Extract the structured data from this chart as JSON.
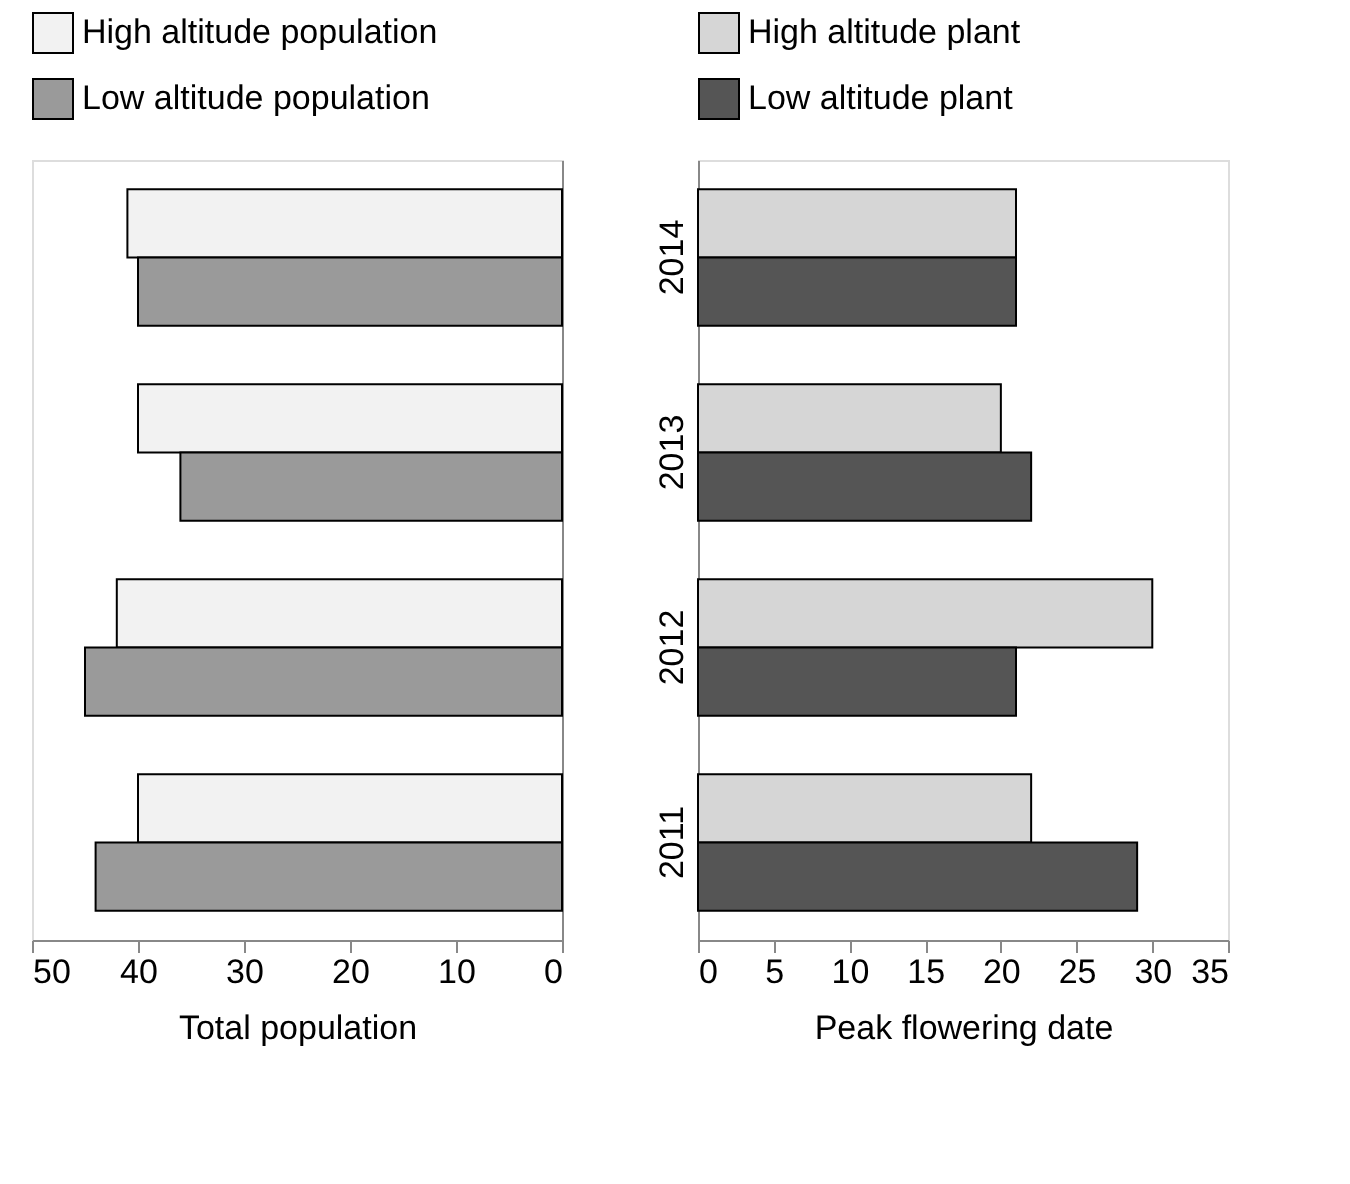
{
  "chart_data": [
    {
      "type": "bar",
      "orientation": "horizontal",
      "xlabel": "Total population",
      "categories": [
        "2014",
        "2013",
        "2012",
        "2011"
      ],
      "xlim": [
        50,
        0
      ],
      "xticks": [
        50,
        40,
        30,
        20,
        10,
        0
      ],
      "grid": false,
      "legend": "top",
      "tick_labels": "x",
      "series": [
        {
          "name": "High altitude population",
          "color": "#f2f2f2",
          "values": [
            41,
            40,
            42,
            40
          ]
        },
        {
          "name": "Low altitude population",
          "color": "#9a9a9a",
          "values": [
            40,
            36,
            45,
            44
          ]
        }
      ]
    },
    {
      "type": "bar",
      "orientation": "horizontal",
      "xlabel": "Peak flowering date",
      "categories": [
        "2014",
        "2013",
        "2012",
        "2011"
      ],
      "xlim": [
        0,
        35
      ],
      "xticks": [
        0,
        5,
        10,
        15,
        20,
        25,
        30,
        35
      ],
      "grid": false,
      "legend": "top",
      "series": [
        {
          "name": "High altitude plant",
          "color": "#d6d6d6",
          "values": [
            21,
            20,
            30,
            22
          ]
        },
        {
          "name": "Low altitude plant",
          "color": "#555555",
          "values": [
            21,
            22,
            21,
            29
          ]
        }
      ]
    }
  ]
}
